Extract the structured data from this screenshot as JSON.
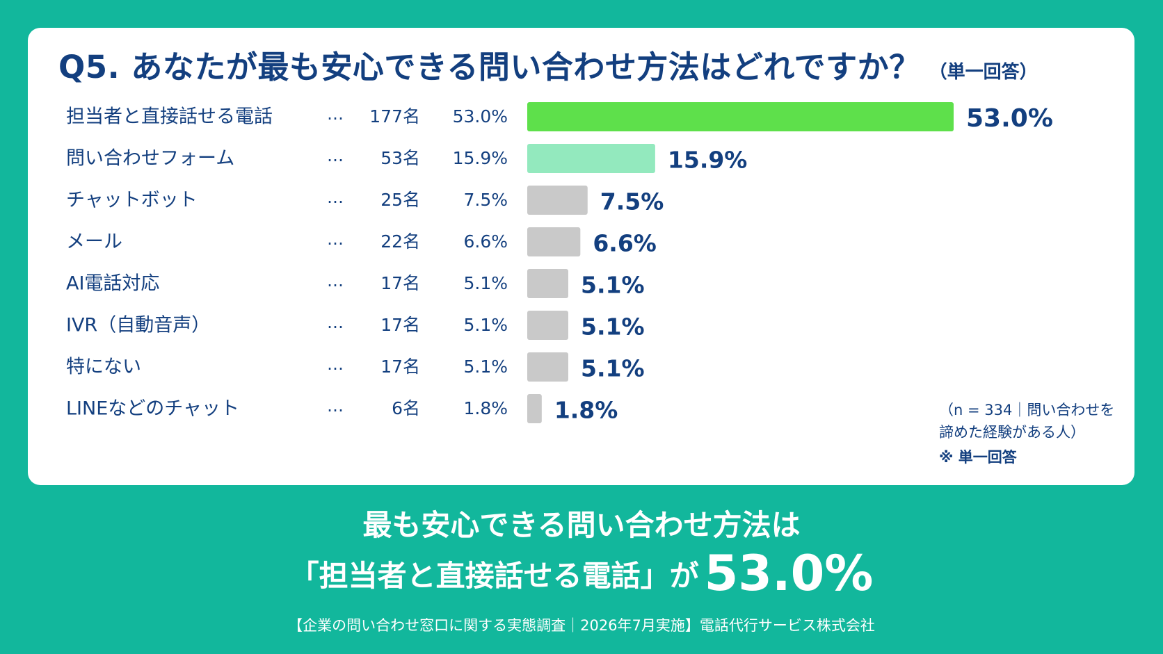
{
  "headline": {
    "line1": "最も安心できる問い合わせ方法は",
    "line2_prefix": "「担当者と直接話せる電話」が",
    "line2_value": "53.0%"
  },
  "footer": "【企業の問い合わせ窓口に関する実態調査｜2026年7月実施】電話代行サービス株式会社",
  "note": {
    "line1": "（n = 334｜問い合わせを",
    "line2": "諦めた経験がある人）",
    "line3": "※ 単一回答"
  },
  "colors": {
    "background": "#12b79c",
    "title": "#133f7f",
    "top_bar": "#5ee04b",
    "second_bar": "#93e9be",
    "other_bars": "#c9c9c9"
  },
  "chart_data": {
    "type": "bar",
    "orientation": "horizontal",
    "title": "Q5. あなたが最も安心できる問い合わせ方法はどれですか？",
    "subtitle": "（単一回答）",
    "separator": "…",
    "categories": [
      "担当者と直接話せる電話",
      "問い合わせフォーム",
      "チャットボット",
      "メール",
      "AI電話対応",
      "IVR（自動音声）",
      "特にない",
      "LINEなどのチャット"
    ],
    "counts": [
      "177名",
      "53名",
      "25名",
      "22名",
      "17名",
      "17名",
      "17名",
      "6名"
    ],
    "values": [
      53.0,
      15.9,
      7.5,
      6.6,
      5.1,
      5.1,
      5.1,
      1.8
    ],
    "value_labels": [
      "53.0%",
      "15.9%",
      "7.5%",
      "6.6%",
      "5.1%",
      "5.1%",
      "5.1%",
      "1.8%"
    ],
    "xlim": [
      0,
      53.0
    ],
    "grid": false,
    "legend": "none"
  }
}
